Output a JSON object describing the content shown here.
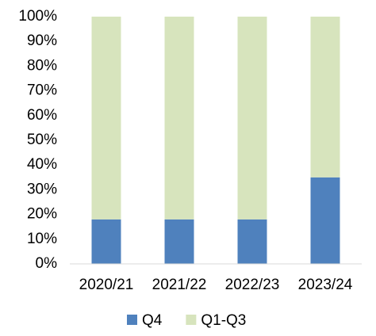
{
  "chart_data": {
    "type": "stacked-bar",
    "categories": [
      "2020/21",
      "2021/22",
      "2022/23",
      "2023/24"
    ],
    "series": [
      {
        "name": "Q4",
        "color": "#4f81bd",
        "values": [
          18,
          18,
          18,
          35
        ]
      },
      {
        "name": "Q1-Q3",
        "color": "#d7e4bd",
        "values": [
          82,
          82,
          82,
          65
        ]
      }
    ],
    "ylim": [
      0,
      100
    ],
    "yticks": [
      {
        "value": 0,
        "label": "0%"
      },
      {
        "value": 10,
        "label": "10%"
      },
      {
        "value": 20,
        "label": "20%"
      },
      {
        "value": 30,
        "label": "30%"
      },
      {
        "value": 40,
        "label": "40%"
      },
      {
        "value": 50,
        "label": "50%"
      },
      {
        "value": 60,
        "label": "60%"
      },
      {
        "value": 70,
        "label": "70%"
      },
      {
        "value": 80,
        "label": "80%"
      },
      {
        "value": 90,
        "label": "90%"
      },
      {
        "value": 100,
        "label": "100%"
      }
    ],
    "grid": false,
    "legend": "bottom"
  }
}
